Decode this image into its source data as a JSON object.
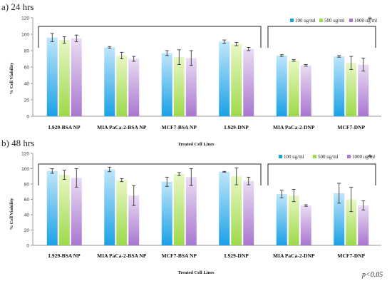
{
  "colors": {
    "s100": [
      "#bfe6fb",
      "#1ba1e6"
    ],
    "s500": [
      "#e8f7c4",
      "#9fd94b"
    ],
    "s1000": [
      "#eadcf4",
      "#a977cf"
    ],
    "axis": "#9a9a9a",
    "bracket": "#222222"
  },
  "footnote": "p<0.05",
  "chart_data": [
    {
      "type": "bar",
      "panel_label": "a) 24 hrs",
      "ylabel": "% Cell Viability",
      "xlabel": "Treated Cell Lines",
      "ylim": [
        0,
        120
      ],
      "yticks": [
        "0",
        "20",
        "40",
        "60",
        "80",
        "100",
        "120"
      ],
      "categories": [
        "L929-BSA NP",
        "MIA PaCa-2-BSA NP",
        "MCF7-BSA NP",
        "L929-DNP",
        "MIA PaCa-2-DNP",
        "MCF7-DNP"
      ],
      "series": [
        {
          "name": "100 ug/ml",
          "values": [
            96,
            84,
            77,
            91,
            74,
            73
          ],
          "errors": [
            5,
            1,
            3,
            2,
            1,
            1
          ]
        },
        {
          "name": "500 ug/ml",
          "values": [
            93,
            74,
            72,
            88,
            68,
            65
          ],
          "errors": [
            4,
            4,
            9,
            2,
            1,
            8
          ]
        },
        {
          "name": "1000 ug/ml",
          "values": [
            95,
            70,
            71,
            82,
            62,
            63
          ],
          "errors": [
            4,
            3,
            9,
            2,
            1,
            8
          ]
        }
      ],
      "legend_position": "top-right",
      "brackets": [
        {
          "from": 0,
          "to": 3,
          "star": ""
        },
        {
          "from": 4,
          "to": 5,
          "star": "*"
        }
      ],
      "grid": false
    },
    {
      "type": "bar",
      "panel_label": "b) 48 hrs",
      "ylabel": "% Cell Viability",
      "xlabel": "Treated Cell Lines",
      "ylim": [
        0,
        120
      ],
      "yticks": [
        "0",
        "20",
        "40",
        "60",
        "80",
        "100",
        "120"
      ],
      "categories": [
        "L929-BSA NP",
        "MIA PaCa-2-BSA NP",
        "MCF7-BSA NP",
        "L929-DNP",
        "MIA PaCa-2-DNP",
        "MCF7-DNP"
      ],
      "series": [
        {
          "name": "100 ug/ml",
          "values": [
            97,
            99,
            83,
            96,
            67,
            68
          ],
          "errors": [
            3,
            3,
            6,
            0.5,
            5,
            13
          ]
        },
        {
          "name": "500 ug/ml",
          "values": [
            92,
            85,
            93,
            90,
            65,
            60
          ],
          "errors": [
            6,
            2,
            2,
            11,
            8,
            16
          ]
        },
        {
          "name": "1000 ug/ml",
          "values": [
            88,
            65,
            89,
            84,
            52,
            52
          ],
          "errors": [
            12,
            13,
            11,
            5,
            1,
            6
          ]
        }
      ],
      "legend_position": "top-right",
      "brackets": [
        {
          "from": 0,
          "to": 3,
          "star": ""
        },
        {
          "from": 4,
          "to": 5,
          "star": "*"
        }
      ],
      "grid": false
    }
  ]
}
